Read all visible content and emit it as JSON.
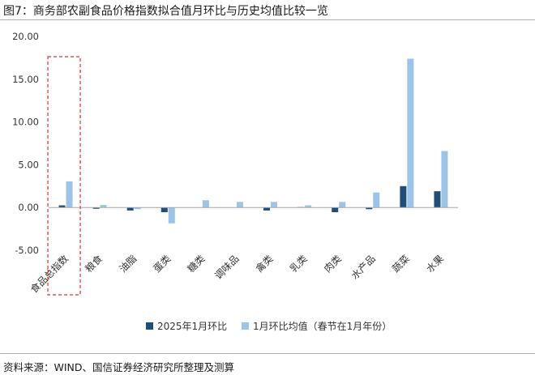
{
  "header": {
    "title": "图7：商务部农副食品价格指数拟合值月环比与历史均值比较一览"
  },
  "footer": {
    "source": "资料来源：WIND、国信证券经济研究所整理及测算"
  },
  "colors": {
    "series1": "#1f4e79",
    "series2": "#9dc3e6",
    "highlight": "#e0312b",
    "zero_line": "#a6a6a6",
    "text": "#333333"
  },
  "chart_data": {
    "type": "bar",
    "categories": [
      "食品总指数",
      "粮食",
      "油脂",
      "蛋类",
      "糖类",
      "调味品",
      "禽类",
      "乳类",
      "肉类",
      "水产品",
      "蔬菜",
      "水果"
    ],
    "series": [
      {
        "name": "2025年1月环比",
        "values": [
          0.25,
          -0.15,
          -0.35,
          -0.55,
          0.0,
          0.0,
          -0.35,
          0.05,
          -0.55,
          -0.2,
          2.5,
          1.9
        ]
      },
      {
        "name": "1月环比均值（春节在1月年份）",
        "values": [
          3.05,
          0.3,
          -0.2,
          -1.85,
          0.85,
          0.65,
          0.65,
          0.25,
          0.65,
          1.75,
          17.4,
          6.6
        ]
      }
    ],
    "yticks": [
      "20.00",
      "15.00",
      "10.00",
      "5.00",
      "0.00",
      "-5.00"
    ],
    "ylim": [
      -5,
      20
    ],
    "xlabel": "",
    "ylabel": "",
    "grid": false,
    "legend_position": "bottom",
    "highlighted_category": "食品总指数"
  }
}
